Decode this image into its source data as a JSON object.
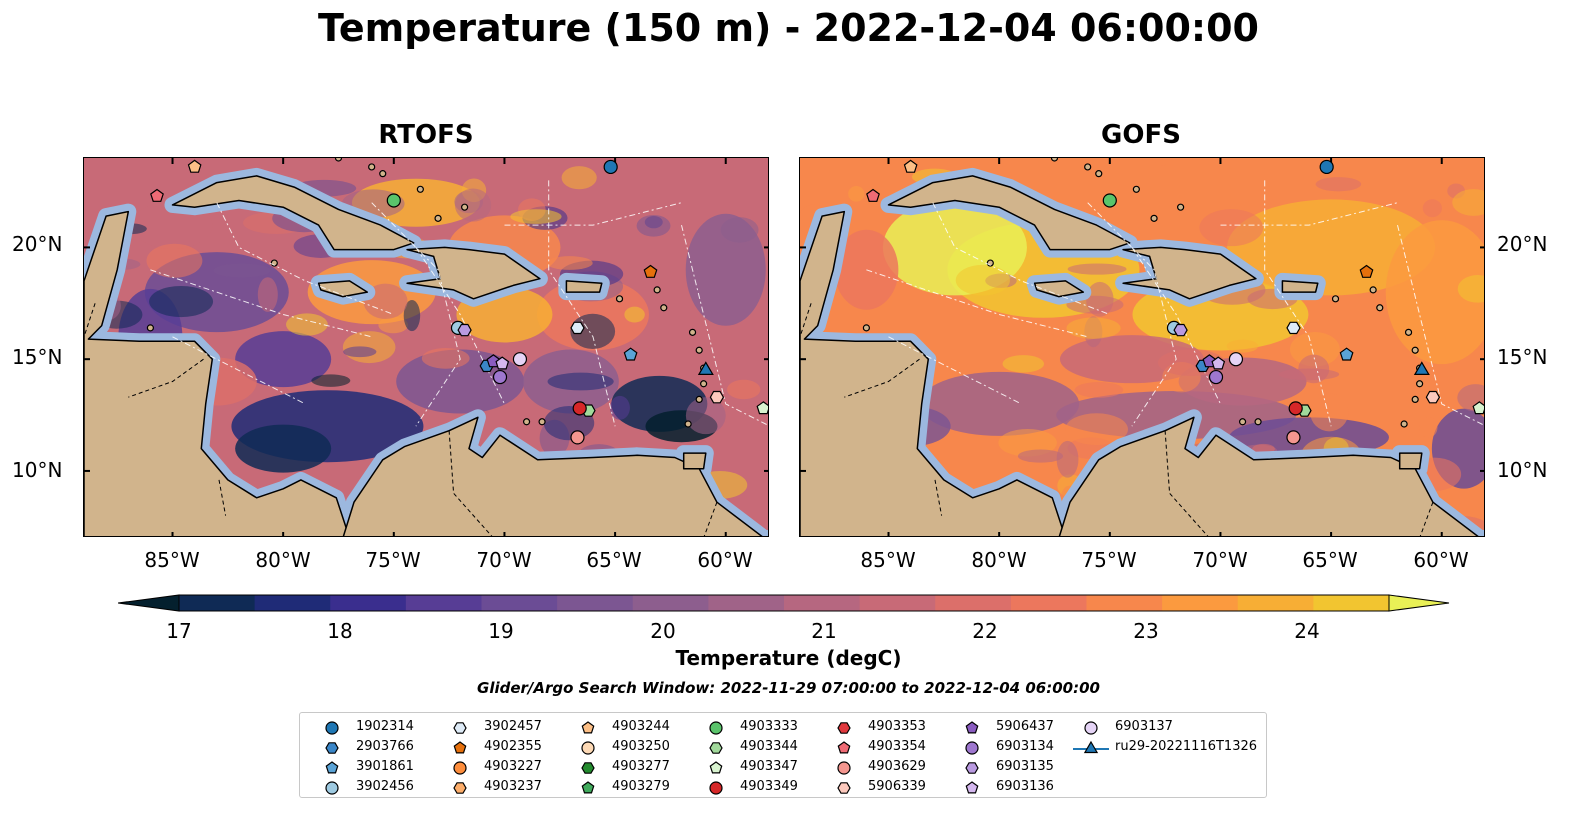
{
  "title": "Temperature (150 m) - 2022-12-04 06:00:00",
  "panels": [
    {
      "title": "RTOFS",
      "palette_shift": 0
    },
    {
      "title": "GOFS",
      "palette_shift": 1
    }
  ],
  "axes": {
    "lat_ticks": [
      "20°N",
      "15°N",
      "10°N"
    ],
    "lon_ticks": [
      "85°W",
      "80°W",
      "75°W",
      "70°W",
      "65°W",
      "60°W"
    ],
    "lon_range": [
      -89,
      -58
    ],
    "lat_range": [
      7,
      24
    ]
  },
  "colorbar": {
    "label": "Temperature (degC)",
    "ticks": [
      "17",
      "18",
      "19",
      "20",
      "21",
      "22",
      "23",
      "24"
    ],
    "colors": [
      "#04202e",
      "#0f2a55",
      "#1f2b77",
      "#3a2e8e",
      "#573d95",
      "#6b4c95",
      "#7c5692",
      "#8d5e8e",
      "#a06388",
      "#b66780",
      "#c86a77",
      "#dc6f6a",
      "#ec775d",
      "#f7874c",
      "#fb9a3f",
      "#f7ae35",
      "#f2c530",
      "#e9f056"
    ],
    "extend": "both"
  },
  "search_window": "Glider/Argo Search Window: 2022-11-29 07:00:00 to 2022-12-04 06:00:00",
  "map_colors": {
    "land": "#d1b48c",
    "shelf": "#9cb8df"
  },
  "legend": [
    {
      "label": "1902314",
      "marker": "circle",
      "color": "#1f77b4"
    },
    {
      "label": "2903766",
      "marker": "hexagon",
      "color": "#3a86c8"
    },
    {
      "label": "3901861",
      "marker": "pentagon",
      "color": "#5aa3d6"
    },
    {
      "label": "3902456",
      "marker": "circle",
      "color": "#9ecae1"
    },
    {
      "label": "3902457",
      "marker": "hexagon",
      "color": "#deebf7"
    },
    {
      "label": "4902355",
      "marker": "pentagon",
      "color": "#e6700c"
    },
    {
      "label": "4903227",
      "marker": "circle",
      "color": "#fd8d3c"
    },
    {
      "label": "4903237",
      "marker": "hexagon",
      "color": "#fdae6b"
    },
    {
      "label": "4903244",
      "marker": "pentagon",
      "color": "#fdbf86"
    },
    {
      "label": "4903250",
      "marker": "circle",
      "color": "#fdd9b5"
    },
    {
      "label": "4903277",
      "marker": "hexagon",
      "color": "#238b2e"
    },
    {
      "label": "4903279",
      "marker": "pentagon",
      "color": "#41ab5d"
    },
    {
      "label": "4903333",
      "marker": "circle",
      "color": "#5ac46b"
    },
    {
      "label": "4903344",
      "marker": "hexagon",
      "color": "#a1d99b"
    },
    {
      "label": "4903347",
      "marker": "pentagon",
      "color": "#d9f4d0"
    },
    {
      "label": "4903349",
      "marker": "circle",
      "color": "#d62728"
    },
    {
      "label": "4903353",
      "marker": "hexagon",
      "color": "#e0393e"
    },
    {
      "label": "4903354",
      "marker": "pentagon",
      "color": "#ef6b75"
    },
    {
      "label": "4903629",
      "marker": "circle",
      "color": "#f4968f"
    },
    {
      "label": "5906339",
      "marker": "hexagon",
      "color": "#fcc9bd"
    },
    {
      "label": "5906437",
      "marker": "pentagon",
      "color": "#8a5cc0"
    },
    {
      "label": "6903134",
      "marker": "circle",
      "color": "#9e77cf"
    },
    {
      "label": "6903135",
      "marker": "hexagon",
      "color": "#b99ae0"
    },
    {
      "label": "6903136",
      "marker": "pentagon",
      "color": "#d4b7ee"
    },
    {
      "label": "6903137",
      "marker": "circle",
      "color": "#e5d4f6"
    },
    {
      "label": "ru29-20221116T1326",
      "marker": "triangle-line",
      "color": "#1f77b4"
    }
  ],
  "floats": [
    {
      "id": "1902314",
      "lon": -65.2,
      "lat": 23.6
    },
    {
      "id": "2903766",
      "lon": -70.8,
      "lat": 14.7
    },
    {
      "id": "3901861",
      "lon": -64.3,
      "lat": 15.2
    },
    {
      "id": "3902456",
      "lon": -72.1,
      "lat": 16.4
    },
    {
      "id": "3902457",
      "lon": -66.7,
      "lat": 16.4
    },
    {
      "id": "4902355",
      "lon": -63.4,
      "lat": 18.9
    },
    {
      "id": "4903244",
      "lon": -84.0,
      "lat": 23.6
    },
    {
      "id": "4903333",
      "lon": -75.0,
      "lat": 22.1
    },
    {
      "id": "4903344",
      "lon": -66.2,
      "lat": 12.7
    },
    {
      "id": "4903347",
      "lon": -58.3,
      "lat": 12.8
    },
    {
      "id": "4903349",
      "lon": -66.6,
      "lat": 12.8
    },
    {
      "id": "4903354",
      "lon": -85.7,
      "lat": 22.3
    },
    {
      "id": "4903629",
      "lon": -66.7,
      "lat": 11.5
    },
    {
      "id": "5906339",
      "lon": -60.4,
      "lat": 13.3
    },
    {
      "id": "5906437",
      "lon": -70.5,
      "lat": 14.9
    },
    {
      "id": "6903134",
      "lon": -70.2,
      "lat": 14.2
    },
    {
      "id": "6903135",
      "lon": -71.8,
      "lat": 16.3
    },
    {
      "id": "6903136",
      "lon": -70.1,
      "lat": 14.8
    },
    {
      "id": "6903137",
      "lon": -69.3,
      "lat": 15.0
    },
    {
      "id": "ru29-20221116T1326",
      "lon": -60.9,
      "lat": 14.5
    }
  ]
}
